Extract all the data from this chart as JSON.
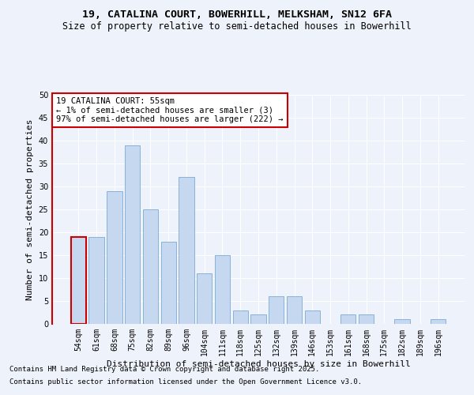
{
  "title1": "19, CATALINA COURT, BOWERHILL, MELKSHAM, SN12 6FA",
  "title2": "Size of property relative to semi-detached houses in Bowerhill",
  "xlabel": "Distribution of semi-detached houses by size in Bowerhill",
  "ylabel": "Number of semi-detached properties",
  "categories": [
    "54sqm",
    "61sqm",
    "68sqm",
    "75sqm",
    "82sqm",
    "89sqm",
    "96sqm",
    "104sqm",
    "111sqm",
    "118sqm",
    "125sqm",
    "132sqm",
    "139sqm",
    "146sqm",
    "153sqm",
    "161sqm",
    "168sqm",
    "175sqm",
    "182sqm",
    "189sqm",
    "196sqm"
  ],
  "values": [
    19,
    19,
    29,
    39,
    25,
    18,
    32,
    11,
    15,
    3,
    2,
    6,
    6,
    3,
    0,
    2,
    2,
    0,
    1,
    0,
    1
  ],
  "bar_color": "#c5d8f0",
  "bar_edge_color": "#7aaad4",
  "highlight_bar_index": 0,
  "highlight_bar_edge_color": "#cc0000",
  "annotation_title": "19 CATALINA COURT: 55sqm",
  "annotation_line1": "← 1% of semi-detached houses are smaller (3)",
  "annotation_line2": "97% of semi-detached houses are larger (222) →",
  "annotation_box_facecolor": "#ffffff",
  "annotation_box_edgecolor": "#cc0000",
  "ylim": [
    0,
    50
  ],
  "yticks": [
    0,
    5,
    10,
    15,
    20,
    25,
    30,
    35,
    40,
    45,
    50
  ],
  "background_color": "#eef2fa",
  "grid_color": "#ffffff",
  "footer1": "Contains HM Land Registry data © Crown copyright and database right 2025.",
  "footer2": "Contains public sector information licensed under the Open Government Licence v3.0.",
  "title_fontsize": 9.5,
  "subtitle_fontsize": 8.5,
  "axis_label_fontsize": 8,
  "tick_fontsize": 7,
  "annotation_fontsize": 7.5,
  "footer_fontsize": 6.5
}
